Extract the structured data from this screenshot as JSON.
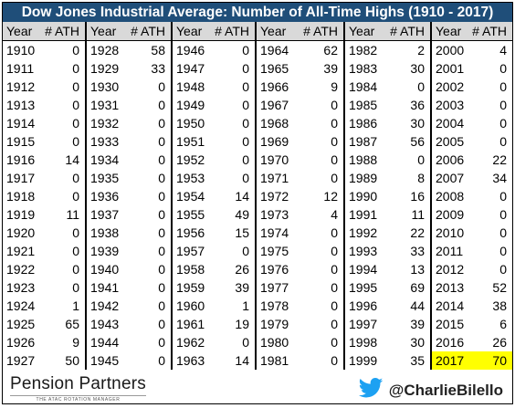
{
  "title": "Dow Jones Industrial Average: Number of All-Time Highs (1910 - 2017)",
  "headers": {
    "year": "Year",
    "ath": "# ATH"
  },
  "highlight_year": "2017",
  "highlight_color": "#ffff00",
  "header_bg": "#1f4e79",
  "footer": {
    "brand": "Pension Partners",
    "tagline": "THE ATAC ROTATION MANAGER",
    "twitter_handle": "@CharlieBilello",
    "twitter_icon": "twitter-bird-icon"
  },
  "chart_data": {
    "type": "table",
    "columns": [
      "Year",
      "# ATH"
    ],
    "rows": [
      [
        "1910",
        "0"
      ],
      [
        "1911",
        "0"
      ],
      [
        "1912",
        "0"
      ],
      [
        "1913",
        "0"
      ],
      [
        "1914",
        "0"
      ],
      [
        "1915",
        "0"
      ],
      [
        "1916",
        "14"
      ],
      [
        "1917",
        "0"
      ],
      [
        "1918",
        "0"
      ],
      [
        "1919",
        "11"
      ],
      [
        "1920",
        "0"
      ],
      [
        "1921",
        "0"
      ],
      [
        "1922",
        "0"
      ],
      [
        "1923",
        "0"
      ],
      [
        "1924",
        "1"
      ],
      [
        "1925",
        "65"
      ],
      [
        "1926",
        "9"
      ],
      [
        "1927",
        "50"
      ],
      [
        "1928",
        "58"
      ],
      [
        "1929",
        "33"
      ],
      [
        "1930",
        "0"
      ],
      [
        "1931",
        "0"
      ],
      [
        "1932",
        "0"
      ],
      [
        "1933",
        "0"
      ],
      [
        "1934",
        "0"
      ],
      [
        "1935",
        "0"
      ],
      [
        "1936",
        "0"
      ],
      [
        "1937",
        "0"
      ],
      [
        "1938",
        "0"
      ],
      [
        "1939",
        "0"
      ],
      [
        "1940",
        "0"
      ],
      [
        "1941",
        "0"
      ],
      [
        "1942",
        "0"
      ],
      [
        "1943",
        "0"
      ],
      [
        "1944",
        "0"
      ],
      [
        "1945",
        "0"
      ],
      [
        "1946",
        "0"
      ],
      [
        "1947",
        "0"
      ],
      [
        "1948",
        "0"
      ],
      [
        "1949",
        "0"
      ],
      [
        "1950",
        "0"
      ],
      [
        "1951",
        "0"
      ],
      [
        "1952",
        "0"
      ],
      [
        "1953",
        "0"
      ],
      [
        "1954",
        "14"
      ],
      [
        "1955",
        "49"
      ],
      [
        "1956",
        "15"
      ],
      [
        "1957",
        "0"
      ],
      [
        "1958",
        "26"
      ],
      [
        "1959",
        "39"
      ],
      [
        "1960",
        "1"
      ],
      [
        "1961",
        "19"
      ],
      [
        "1962",
        "0"
      ],
      [
        "1963",
        "14"
      ],
      [
        "1964",
        "62"
      ],
      [
        "1965",
        "39"
      ],
      [
        "1966",
        "9"
      ],
      [
        "1967",
        "0"
      ],
      [
        "1968",
        "0"
      ],
      [
        "1969",
        "0"
      ],
      [
        "1970",
        "0"
      ],
      [
        "1971",
        "0"
      ],
      [
        "1972",
        "12"
      ],
      [
        "1973",
        "4"
      ],
      [
        "1974",
        "0"
      ],
      [
        "1975",
        "0"
      ],
      [
        "1976",
        "0"
      ],
      [
        "1977",
        "0"
      ],
      [
        "1978",
        "0"
      ],
      [
        "1979",
        "0"
      ],
      [
        "1980",
        "0"
      ],
      [
        "1981",
        "0"
      ],
      [
        "1982",
        "2"
      ],
      [
        "1983",
        "30"
      ],
      [
        "1984",
        "0"
      ],
      [
        "1985",
        "36"
      ],
      [
        "1986",
        "30"
      ],
      [
        "1987",
        "56"
      ],
      [
        "1988",
        "0"
      ],
      [
        "1989",
        "8"
      ],
      [
        "1990",
        "16"
      ],
      [
        "1991",
        "11"
      ],
      [
        "1992",
        "22"
      ],
      [
        "1993",
        "33"
      ],
      [
        "1994",
        "13"
      ],
      [
        "1995",
        "69"
      ],
      [
        "1996",
        "44"
      ],
      [
        "1997",
        "39"
      ],
      [
        "1998",
        "30"
      ],
      [
        "1999",
        "35"
      ],
      [
        "2000",
        "4"
      ],
      [
        "2001",
        "0"
      ],
      [
        "2002",
        "0"
      ],
      [
        "2003",
        "0"
      ],
      [
        "2004",
        "0"
      ],
      [
        "2005",
        "0"
      ],
      [
        "2006",
        "22"
      ],
      [
        "2007",
        "34"
      ],
      [
        "2008",
        "0"
      ],
      [
        "2009",
        "0"
      ],
      [
        "2010",
        "0"
      ],
      [
        "2011",
        "0"
      ],
      [
        "2012",
        "0"
      ],
      [
        "2013",
        "52"
      ],
      [
        "2014",
        "38"
      ],
      [
        "2015",
        "6"
      ],
      [
        "2016",
        "26"
      ],
      [
        "2017",
        "70"
      ]
    ]
  }
}
